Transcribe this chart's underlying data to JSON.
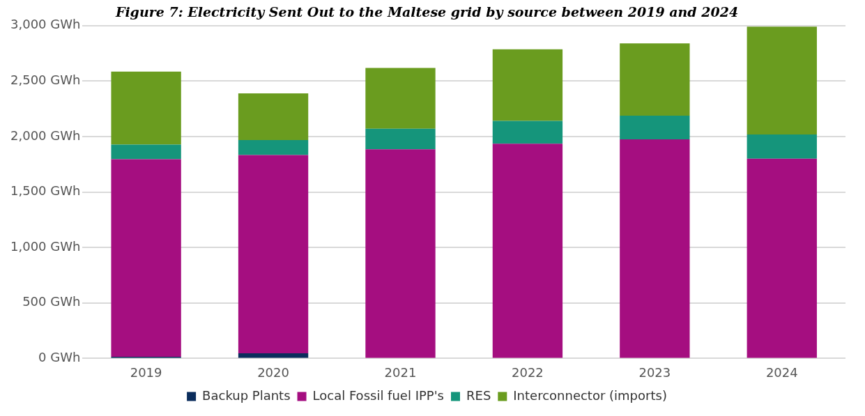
{
  "chart_data": {
    "type": "bar",
    "stacked": true,
    "title": "Figure 7: Electricity Sent Out to the Maltese grid by source between 2019 and 2024",
    "categories": [
      "2019",
      "2020",
      "2021",
      "2022",
      "2023",
      "2024"
    ],
    "series": [
      {
        "name": "Backup Plants",
        "color": "#0b2d5c",
        "values": [
          15,
          46,
          null,
          null,
          0,
          0
        ]
      },
      {
        "name": "Local Fossil fuel IPP's",
        "color": "#a50e80",
        "values": [
          1781,
          1788,
          1886,
          1936,
          1975,
          1801
        ]
      },
      {
        "name": "RES",
        "color": "#15957b",
        "values": [
          131,
          135,
          184,
          206,
          213,
          218
        ]
      },
      {
        "name": "Interconnector (imports)",
        "color": "#6a9c1f",
        "values": [
          659,
          420,
          548,
          644,
          652,
          972
        ]
      }
    ],
    "ylim": [
      0,
      3000
    ],
    "yticks": [
      {
        "value": 0,
        "label": "0 GWh"
      },
      {
        "value": 500,
        "label": "500 GWh"
      },
      {
        "value": 1000,
        "label": "1,000 GWh"
      },
      {
        "value": 1500,
        "label": "1,500 GWh"
      },
      {
        "value": 2000,
        "label": "2,000 GWh"
      },
      {
        "value": 2500,
        "label": "2,500 GWh"
      },
      {
        "value": 3000,
        "label": "3,000 GWh"
      }
    ],
    "grid": "y",
    "legend": "bottom"
  }
}
